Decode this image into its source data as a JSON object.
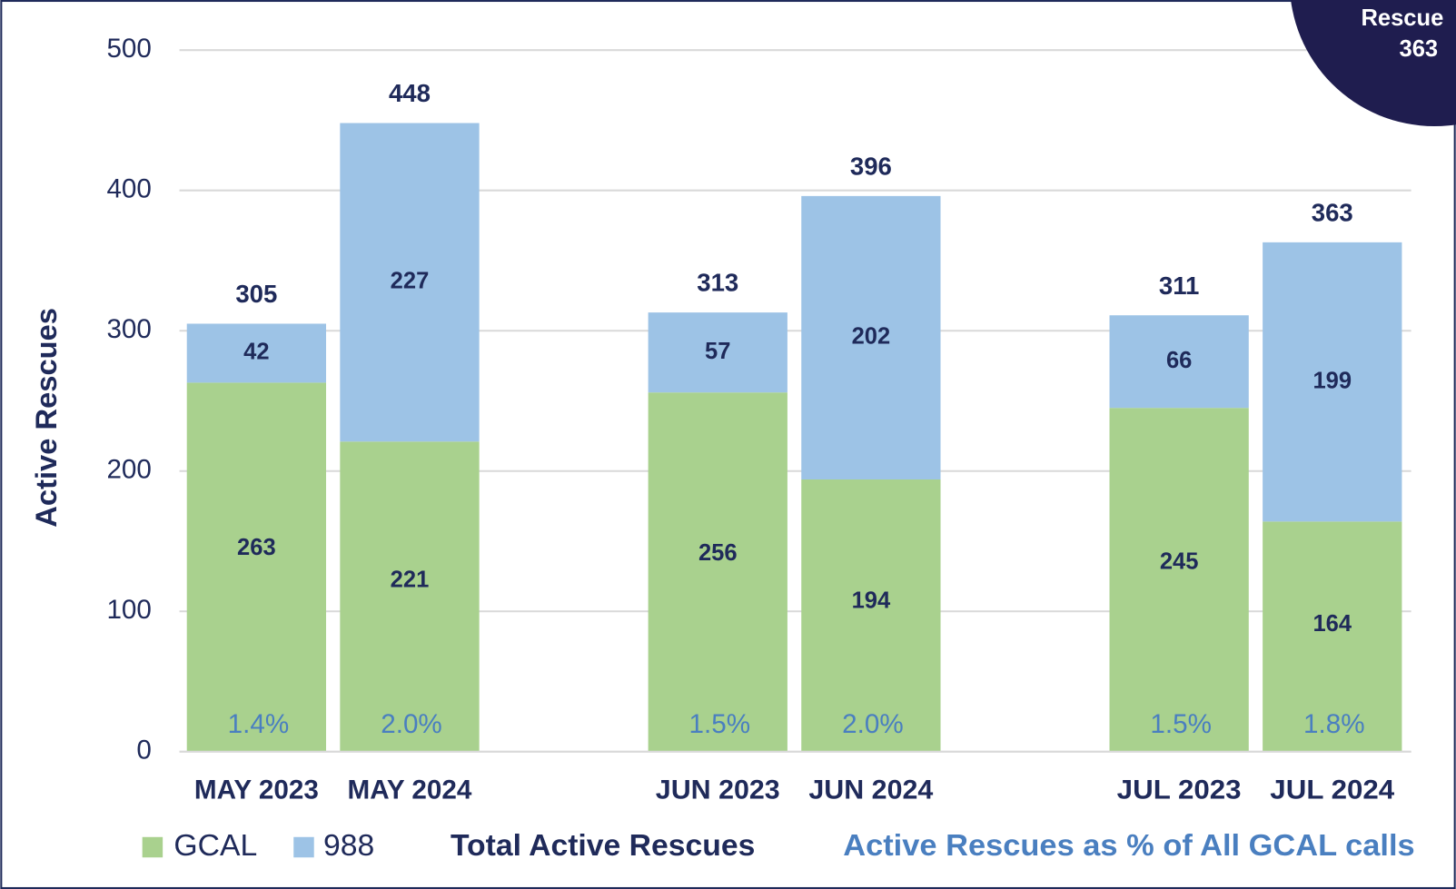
{
  "chart_data": {
    "type": "stacked_bar",
    "ylabel": "Active Rescues",
    "categories": [
      "MAY 2023",
      "MAY 2024",
      "JUN 2023",
      "JUN 2024",
      "JUL 2023",
      "JUL 2024"
    ],
    "series": [
      {
        "name": "GCAL",
        "color": "#a9d18e",
        "values": [
          263,
          221,
          256,
          194,
          245,
          164
        ]
      },
      {
        "name": "988",
        "color": "#9dc3e6",
        "values": [
          42,
          227,
          57,
          202,
          66,
          199
        ]
      }
    ],
    "totals": {
      "name": "Total Active Rescues",
      "color": "#1f2a5a",
      "values": [
        305,
        448,
        313,
        396,
        311,
        363
      ]
    },
    "percent": {
      "name": "Active Rescues as % of All GCAL calls",
      "color": "#4a7fc0",
      "values": [
        1.4,
        2.0,
        1.5,
        2.0,
        1.5,
        1.8
      ],
      "value_labels": [
        "1.4%",
        "2.0%",
        "1.5%",
        "2.0%",
        "1.5%",
        "1.8%"
      ]
    },
    "ylim": [
      0,
      500
    ],
    "yticks": [
      0,
      100,
      200,
      300,
      400,
      500
    ],
    "grid": true,
    "legend": "bottom",
    "badge": {
      "label": "Rescue",
      "value": 363
    }
  }
}
